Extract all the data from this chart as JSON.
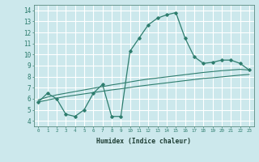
{
  "xlabel": "Humidex (Indice chaleur)",
  "bg_color": "#cce8ec",
  "grid_color": "#ffffff",
  "line_color": "#2e7d6e",
  "xlim": [
    -0.5,
    23.5
  ],
  "ylim": [
    3.5,
    14.5
  ],
  "xticks": [
    0,
    1,
    2,
    3,
    4,
    5,
    6,
    7,
    8,
    9,
    10,
    11,
    12,
    13,
    14,
    15,
    16,
    17,
    18,
    19,
    20,
    21,
    22,
    23
  ],
  "yticks": [
    4,
    5,
    6,
    7,
    8,
    9,
    10,
    11,
    12,
    13,
    14
  ],
  "curve1_x": [
    0,
    1,
    2,
    3,
    4,
    5,
    6,
    7,
    8,
    9,
    10,
    11,
    12,
    13,
    14,
    15,
    16,
    17,
    18,
    19,
    20,
    21,
    22,
    23
  ],
  "curve1_y": [
    5.7,
    6.5,
    6.0,
    4.6,
    4.4,
    5.0,
    6.5,
    7.3,
    4.4,
    4.4,
    10.3,
    11.5,
    12.7,
    13.3,
    13.6,
    13.8,
    11.5,
    9.8,
    9.2,
    9.3,
    9.5,
    9.5,
    9.2,
    8.6
  ],
  "curve2_x": [
    0,
    23
  ],
  "curve2_y": [
    5.7,
    8.6
  ],
  "curve3_x": [
    0,
    23
  ],
  "curve3_y": [
    5.7,
    8.6
  ],
  "ref_upper_x": [
    0,
    1,
    2,
    3,
    4,
    5,
    6,
    7,
    8,
    9,
    10,
    11,
    12,
    13,
    14,
    15,
    16,
    17,
    18,
    19,
    20,
    21,
    22,
    23
  ],
  "ref_upper_y": [
    5.9,
    6.15,
    6.35,
    6.5,
    6.65,
    6.8,
    6.95,
    7.1,
    7.25,
    7.38,
    7.52,
    7.66,
    7.78,
    7.88,
    7.98,
    8.08,
    8.18,
    8.28,
    8.38,
    8.46,
    8.54,
    8.6,
    8.66,
    8.6
  ],
  "ref_lower_x": [
    0,
    1,
    2,
    3,
    4,
    5,
    6,
    7,
    8,
    9,
    10,
    11,
    12,
    13,
    14,
    15,
    16,
    17,
    18,
    19,
    20,
    21,
    22,
    23
  ],
  "ref_lower_y": [
    5.7,
    5.88,
    6.05,
    6.2,
    6.32,
    6.44,
    6.56,
    6.68,
    6.8,
    6.9,
    7.02,
    7.14,
    7.24,
    7.34,
    7.44,
    7.54,
    7.64,
    7.74,
    7.84,
    7.9,
    7.98,
    8.06,
    8.14,
    8.2
  ]
}
